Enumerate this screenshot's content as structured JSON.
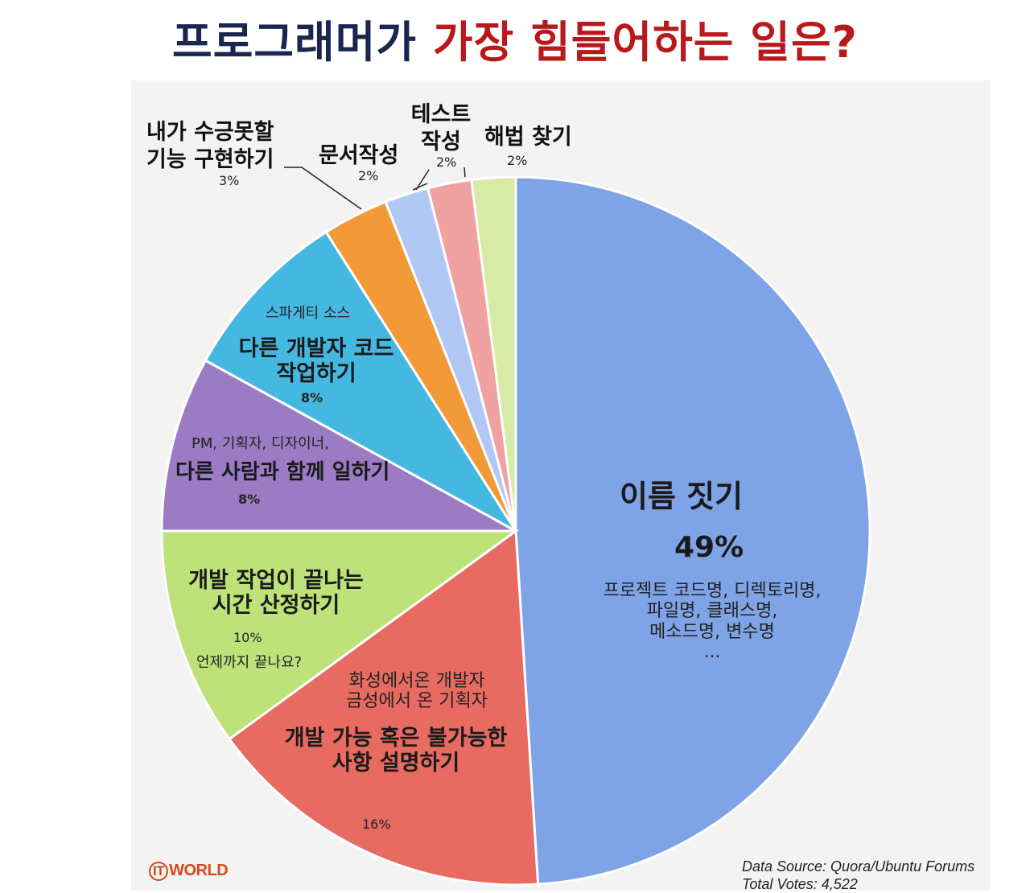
{
  "title": {
    "part1": "프로그래머가",
    "part2": "가장 힘들어하는 일은?"
  },
  "chart_data": {
    "type": "pie",
    "title": "프로그래머가 가장 힘들어하는 일은?",
    "slices": [
      {
        "label": "이름 짓기",
        "value": 49,
        "pct": "49%",
        "note": [
          "프로젝트 코드명, 디렉토리명,",
          "파일명, 클래스명,",
          "메소드명, 변수명",
          "..."
        ],
        "color": "#7ea3e6"
      },
      {
        "label": [
          "개발 가능 혹은 불가능한",
          "사항 설명하기"
        ],
        "value": 16,
        "pct": "16%",
        "note": [
          "화성에서온 개발자",
          "금성에서 온 기획자"
        ],
        "color": "#e86b62"
      },
      {
        "label": [
          "개발 작업이 끝나는",
          "시간 산정하기"
        ],
        "value": 10,
        "pct": "10%",
        "note": [
          "언제까지 끝나요?"
        ],
        "color": "#bde27a"
      },
      {
        "label": "다른 사람과 함께 일하기",
        "value": 8,
        "pct": "8%",
        "note": [
          "PM, 기획자, 디자이너,"
        ],
        "color": "#9b7cc4"
      },
      {
        "label": [
          "다른 개발자 코드",
          "작업하기"
        ],
        "value": 8,
        "pct": "8%",
        "note": [
          "스파게티 소스"
        ],
        "color": "#45b8e2"
      },
      {
        "label": [
          "내가 수긍못할",
          "기능 구현하기"
        ],
        "value": 3,
        "pct": "3%",
        "color": "#f29a38"
      },
      {
        "label": "문서작성",
        "value": 2,
        "pct": "2%",
        "color": "#b2c8f4"
      },
      {
        "label": [
          "테스트",
          "작성"
        ],
        "value": 2,
        "pct": "2%",
        "color": "#f0a1a1"
      },
      {
        "label": "해법 찾기",
        "value": 2,
        "pct": "2%",
        "color": "#d7eaa6"
      }
    ],
    "legend": "none"
  },
  "branding": {
    "logo": "WORLD",
    "logo_ring": "IT"
  },
  "source": {
    "line1": "Data Source: Quora/Ubuntu Forums",
    "line2": "Total Votes: 4,522"
  }
}
